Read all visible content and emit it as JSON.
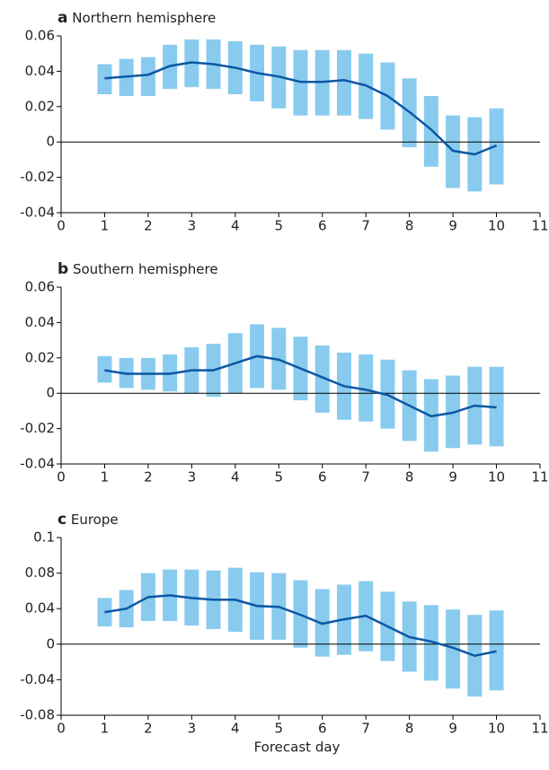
{
  "chart_data": [
    {
      "type": "line",
      "panel_label": "a",
      "title": "Northern hemisphere",
      "x": [
        1,
        1.5,
        2,
        2.5,
        3,
        3.5,
        4,
        4.5,
        5,
        5.5,
        6,
        6.5,
        7,
        7.5,
        8,
        8.5,
        9,
        9.5,
        10
      ],
      "values": [
        0.036,
        0.037,
        0.038,
        0.043,
        0.045,
        0.044,
        0.042,
        0.039,
        0.037,
        0.034,
        0.034,
        0.035,
        0.032,
        0.026,
        0.017,
        0.007,
        -0.005,
        -0.007,
        -0.002
      ],
      "lower": [
        0.027,
        0.026,
        0.026,
        0.03,
        0.031,
        0.03,
        0.027,
        0.023,
        0.019,
        0.015,
        0.015,
        0.015,
        0.013,
        0.007,
        -0.003,
        -0.014,
        -0.026,
        -0.028,
        -0.024
      ],
      "upper": [
        0.044,
        0.047,
        0.048,
        0.055,
        0.058,
        0.058,
        0.057,
        0.055,
        0.054,
        0.052,
        0.052,
        0.052,
        0.05,
        0.045,
        0.036,
        0.026,
        0.015,
        0.014,
        0.019
      ],
      "color": "#0b57a4",
      "band_color": "#89cbee",
      "xlim": [
        0,
        11
      ],
      "xticks": [
        0,
        1,
        2,
        3,
        4,
        5,
        6,
        7,
        8,
        9,
        10,
        11
      ],
      "ylim": [
        -0.04,
        0.06
      ],
      "yticks": [
        -0.04,
        -0.02,
        0,
        0.02,
        0.04,
        0.06
      ],
      "zero_line": true
    },
    {
      "type": "line",
      "panel_label": "b",
      "title": "Southern hemisphere",
      "x": [
        1,
        1.5,
        2,
        2.5,
        3,
        3.5,
        4,
        4.5,
        5,
        5.5,
        6,
        6.5,
        7,
        7.5,
        8,
        8.5,
        9,
        9.5,
        10
      ],
      "values": [
        0.013,
        0.011,
        0.011,
        0.011,
        0.013,
        0.013,
        0.017,
        0.021,
        0.019,
        0.014,
        0.009,
        0.004,
        0.002,
        -0.001,
        -0.007,
        -0.013,
        -0.011,
        -0.007,
        -0.008
      ],
      "lower": [
        0.006,
        0.003,
        0.002,
        0.001,
        0.0,
        -0.002,
        0.0,
        0.003,
        0.002,
        -0.004,
        -0.011,
        -0.015,
        -0.016,
        -0.02,
        -0.027,
        -0.033,
        -0.031,
        -0.029,
        -0.03
      ],
      "upper": [
        0.021,
        0.02,
        0.02,
        0.022,
        0.026,
        0.028,
        0.034,
        0.039,
        0.037,
        0.032,
        0.027,
        0.023,
        0.022,
        0.019,
        0.013,
        0.008,
        0.01,
        0.015,
        0.015
      ],
      "color": "#0b57a4",
      "band_color": "#89cbee",
      "xlim": [
        0,
        11
      ],
      "xticks": [
        0,
        1,
        2,
        3,
        4,
        5,
        6,
        7,
        8,
        9,
        10,
        11
      ],
      "ylim": [
        -0.04,
        0.06
      ],
      "yticks": [
        -0.04,
        -0.02,
        0,
        0.02,
        0.04,
        0.06
      ],
      "zero_line": true
    },
    {
      "type": "line",
      "panel_label": "c",
      "title": "Europe",
      "xlabel": "Forecast day",
      "x": [
        1,
        1.5,
        2,
        2.5,
        3,
        3.5,
        4,
        4.5,
        5,
        5.5,
        6,
        6.5,
        7,
        7.5,
        8,
        8.5,
        9,
        9.5,
        10
      ],
      "values": [
        0.036,
        0.04,
        0.053,
        0.055,
        0.052,
        0.05,
        0.05,
        0.043,
        0.042,
        0.033,
        0.023,
        0.028,
        0.032,
        0.02,
        0.008,
        0.003,
        -0.004,
        -0.013,
        -0.008
      ],
      "lower": [
        0.02,
        0.019,
        0.026,
        0.026,
        0.021,
        0.017,
        0.014,
        0.005,
        0.005,
        -0.004,
        -0.014,
        -0.012,
        -0.008,
        -0.019,
        -0.031,
        -0.041,
        -0.05,
        -0.059,
        -0.052
      ],
      "upper": [
        0.052,
        0.061,
        0.08,
        0.084,
        0.084,
        0.083,
        0.086,
        0.081,
        0.08,
        0.072,
        0.062,
        0.067,
        0.071,
        0.059,
        0.048,
        0.044,
        0.039,
        0.033,
        0.038
      ],
      "color": "#0b57a4",
      "band_color": "#89cbee",
      "xlim": [
        0,
        11
      ],
      "xticks": [
        0,
        1,
        2,
        3,
        4,
        5,
        6,
        7,
        8,
        9,
        10,
        11
      ],
      "ylim": [
        -0.08,
        0.12
      ],
      "yticks": [
        -0.08,
        -0.04,
        0,
        0.04,
        0.08,
        {
          "value": 0.12,
          "label": "0.1"
        }
      ],
      "zero_line": true
    }
  ]
}
